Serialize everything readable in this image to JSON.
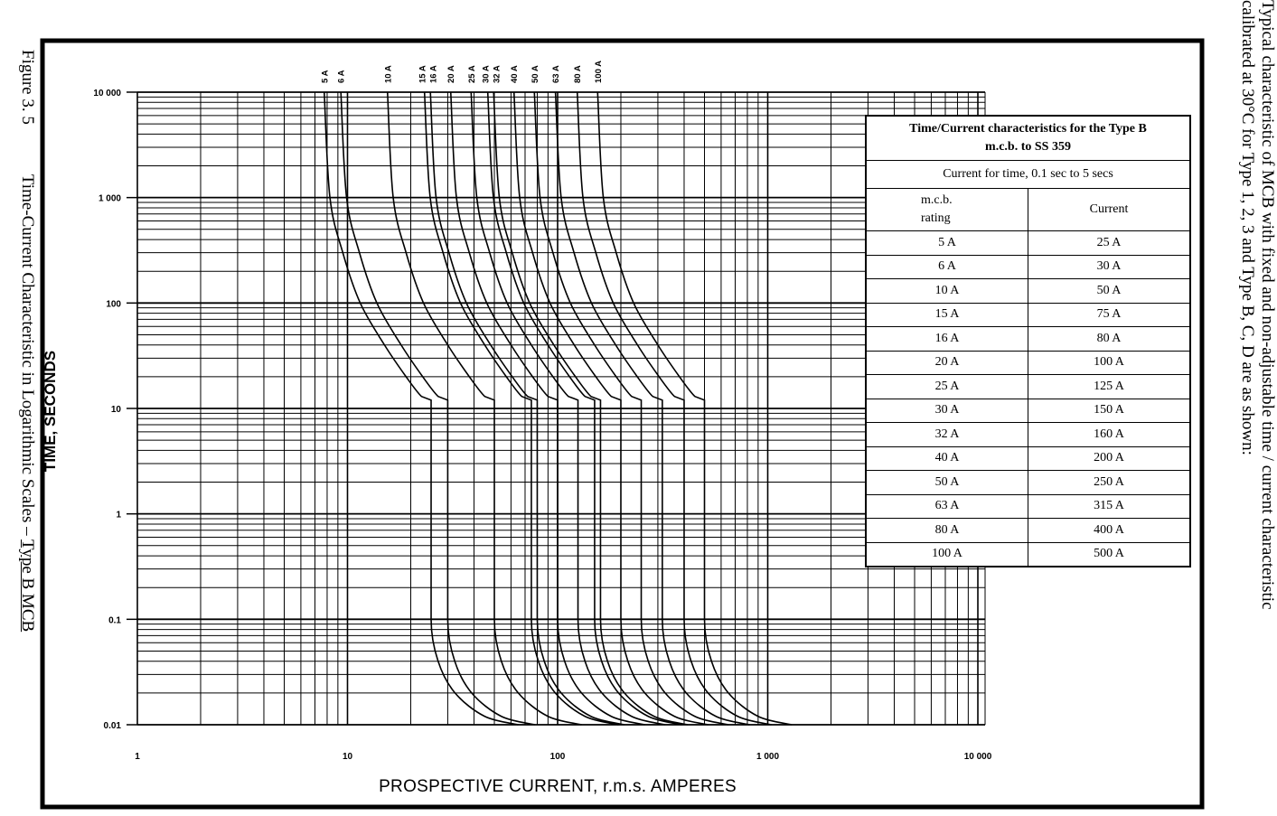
{
  "caption": {
    "figure_number": "Figure 3. 5",
    "text": "Time-Current Characteristic in Logarithmic Scales – ",
    "emphasis": "Type B MCB"
  },
  "side_note": {
    "line1": "Typical characteristic of MCB with fixed and non-adjustable time / current characteristic",
    "line2": "calibrated at 30°C for Type 1, 2, 3 and Type B, C, D are as shown:"
  },
  "table": {
    "title_line1": "Time/Current characteristics for the Type B",
    "title_line2": "m.c.b. to SS 359",
    "subtitle": "Current for time, 0.1 sec to 5 secs",
    "col_rating_line1": "m.c.b.",
    "col_rating_line2": "rating",
    "col_current": "Current",
    "rows": [
      {
        "rating": "5 A",
        "current": "25 A"
      },
      {
        "rating": "6 A",
        "current": "30 A"
      },
      {
        "rating": "10 A",
        "current": "50 A"
      },
      {
        "rating": "15 A",
        "current": "75 A"
      },
      {
        "rating": "16 A",
        "current": "80 A"
      },
      {
        "rating": "20 A",
        "current": "100 A"
      },
      {
        "rating": "25 A",
        "current": "125 A"
      },
      {
        "rating": "30 A",
        "current": "150 A"
      },
      {
        "rating": "32 A",
        "current": "160 A"
      },
      {
        "rating": "40 A",
        "current": "200 A"
      },
      {
        "rating": "50 A",
        "current": "250 A"
      },
      {
        "rating": "63 A",
        "current": "315 A"
      },
      {
        "rating": "80 A",
        "current": "400 A"
      },
      {
        "rating": "100 A",
        "current": "500 A"
      }
    ]
  },
  "chart_data": {
    "type": "line",
    "title": "",
    "xlabel": "PROSPECTIVE CURRENT, r.m.s. AMPERES",
    "ylabel": "TIME, SECONDS",
    "x_scale": "log",
    "y_scale": "log",
    "xlim": [
      1,
      10000
    ],
    "ylim": [
      0.01,
      10000
    ],
    "grid": true,
    "x_ticks": [
      {
        "value": 1,
        "label": "1"
      },
      {
        "value": 10,
        "label": "10"
      },
      {
        "value": 100,
        "label": "100"
      },
      {
        "value": 1000,
        "label": "1 000"
      },
      {
        "value": 10000,
        "label": "10 000"
      }
    ],
    "y_ticks": [
      {
        "value": 10000,
        "label": "10 000"
      },
      {
        "value": 1000,
        "label": "1 000"
      },
      {
        "value": 100,
        "label": "100"
      },
      {
        "value": 10,
        "label": "10"
      },
      {
        "value": 1,
        "label": "1"
      },
      {
        "value": 0.1,
        "label": "0.1"
      },
      {
        "value": 0.01,
        "label": "0.01"
      }
    ],
    "time_s": [
      10000,
      1000,
      300,
      100,
      40,
      20,
      13,
      12,
      0.1,
      0.04,
      0.02,
      0.012,
      0.01
    ],
    "series": [
      {
        "name": "5 A",
        "current_A": [
          7.75,
          8.25,
          9.5,
          11.5,
          15,
          19,
          22.5,
          25,
          25,
          27,
          32.5,
          45,
          65
        ]
      },
      {
        "name": "6 A",
        "current_A": [
          9.3,
          9.9,
          11.4,
          13.8,
          18,
          22.8,
          27,
          30,
          30,
          32.4,
          39,
          54,
          78
        ]
      },
      {
        "name": "10 A",
        "current_A": [
          15.5,
          16.5,
          19,
          23,
          30,
          38,
          45,
          50,
          50,
          54,
          65,
          90,
          130
        ]
      },
      {
        "name": "15 A",
        "current_A": [
          23.25,
          24.75,
          28.5,
          34.5,
          45,
          57,
          67.5,
          75,
          75,
          81,
          97.5,
          135,
          195
        ]
      },
      {
        "name": "16 A",
        "current_A": [
          24.8,
          26.4,
          30.4,
          36.8,
          48,
          60.8,
          72,
          80,
          80,
          86.4,
          104,
          144,
          208
        ]
      },
      {
        "name": "20 A",
        "current_A": [
          31,
          33,
          38,
          46,
          60,
          76,
          90,
          100,
          100,
          108,
          130,
          180,
          260
        ]
      },
      {
        "name": "25 A",
        "current_A": [
          38.75,
          41.25,
          47.5,
          57.5,
          75,
          95,
          112.5,
          125,
          125,
          135,
          162.5,
          225,
          325
        ]
      },
      {
        "name": "30 A",
        "current_A": [
          46.5,
          49.5,
          57,
          69,
          90,
          114,
          135,
          150,
          150,
          162,
          195,
          270,
          390
        ]
      },
      {
        "name": "32 A",
        "current_A": [
          49.6,
          52.8,
          60.8,
          73.6,
          96,
          121.6,
          144,
          160,
          160,
          172.8,
          208,
          288,
          416
        ]
      },
      {
        "name": "40 A",
        "current_A": [
          62,
          66,
          76,
          92,
          120,
          152,
          180,
          200,
          200,
          216,
          260,
          360,
          520
        ]
      },
      {
        "name": "50 A",
        "current_A": [
          77.5,
          82.5,
          95,
          115,
          150,
          190,
          225,
          250,
          250,
          270,
          325,
          450,
          650
        ]
      },
      {
        "name": "63 A",
        "current_A": [
          97.65,
          103.95,
          119.7,
          144.9,
          189,
          239.4,
          283.5,
          315,
          315,
          340.2,
          409.5,
          567,
          819
        ]
      },
      {
        "name": "80 A",
        "current_A": [
          124,
          132,
          152,
          184,
          240,
          304,
          360,
          400,
          400,
          432,
          520,
          720,
          1040
        ]
      },
      {
        "name": "100 A",
        "current_A": [
          155,
          165,
          190,
          230,
          300,
          380,
          450,
          500,
          500,
          540,
          650,
          900,
          1300
        ]
      }
    ]
  }
}
